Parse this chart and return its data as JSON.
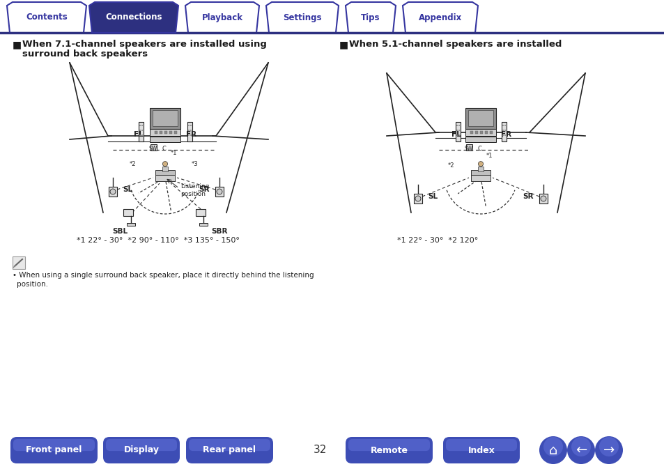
{
  "tab_labels": [
    "Contents",
    "Connections",
    "Playback",
    "Settings",
    "Tips",
    "Appendix"
  ],
  "active_tab": 1,
  "tab_color_active": "#2d3080",
  "tab_color_inactive": "#ffffff",
  "tab_text_color_active": "#ffffff",
  "tab_text_color_inactive": "#3535a0",
  "tab_border_color": "#3535a0",
  "tab_line_color": "#2d3080",
  "left_title_line1": "When 7.1-channel speakers are installed using",
  "left_title_line2": "surround back speakers",
  "right_title": "When 5.1-channel speakers are installed",
  "left_angles": "*1 22° - 30°  *2 90° - 110°  *3 135° - 150°",
  "right_angles": "*1 22° - 30°  *2 120°",
  "note_text": "When using a single surround back speaker, place it directly behind the listening\nposition.",
  "page_number": "32",
  "bottom_buttons": [
    "Front panel",
    "Display",
    "Rear panel",
    "Remote",
    "Index"
  ],
  "btn_color": "#3d4db5",
  "btn_text_color": "#ffffff",
  "bg_color": "#ffffff",
  "title_square_color": "#1a1a1a",
  "body_text_color": "#1a1a1a",
  "diagram_line_color": "#222222",
  "dashed_line_color": "#333333"
}
